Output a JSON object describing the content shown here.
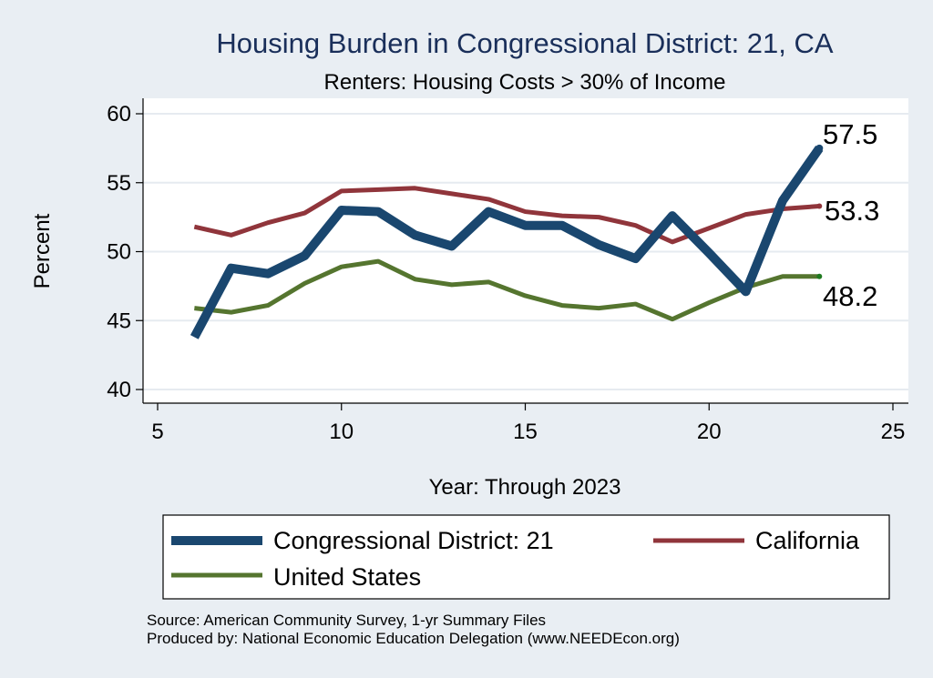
{
  "chart_data": {
    "type": "line",
    "title": "Housing Burden in Congressional District:  21, CA",
    "subtitle": "Renters: Housing Costs > 30% of Income",
    "xlabel": "Year: Through 2023",
    "ylabel": "Percent",
    "xlim": [
      5,
      25
    ],
    "ylim": [
      40,
      60
    ],
    "xticks": [
      5,
      10,
      15,
      20,
      25
    ],
    "yticks": [
      40,
      45,
      50,
      55,
      60
    ],
    "x": [
      6,
      7,
      8,
      9,
      10,
      11,
      12,
      13,
      14,
      15,
      16,
      17,
      18,
      19,
      20,
      21,
      22,
      23
    ],
    "series": [
      {
        "name": "Congressional District:  21",
        "color": "#1a476f",
        "values": [
          43.8,
          48.8,
          48.4,
          49.7,
          53.0,
          52.9,
          51.2,
          50.4,
          52.9,
          51.9,
          51.9,
          50.5,
          49.5,
          52.6,
          49.9,
          47.1,
          53.7,
          57.5
        ],
        "end_label": "57.5"
      },
      {
        "name": "California",
        "color": "#90353b",
        "values": [
          51.8,
          51.2,
          52.1,
          52.8,
          54.4,
          54.5,
          54.6,
          54.2,
          53.8,
          52.9,
          52.6,
          52.5,
          51.9,
          50.7,
          51.7,
          52.7,
          53.1,
          53.3
        ],
        "end_label": "53.3"
      },
      {
        "name": "United States",
        "color": "#55752f",
        "values": [
          45.9,
          45.6,
          46.1,
          47.7,
          48.9,
          49.3,
          48.0,
          47.6,
          47.8,
          46.8,
          46.1,
          45.9,
          46.2,
          45.1,
          46.3,
          47.4,
          48.2,
          48.2
        ],
        "end_label": "48.2"
      }
    ],
    "legend_position": "bottom",
    "source_note": "Source: American Community Survey, 1-yr Summary Files",
    "produced_note": "Produced by: National Economic Education Delegation (www.NEEDEcon.org)"
  }
}
